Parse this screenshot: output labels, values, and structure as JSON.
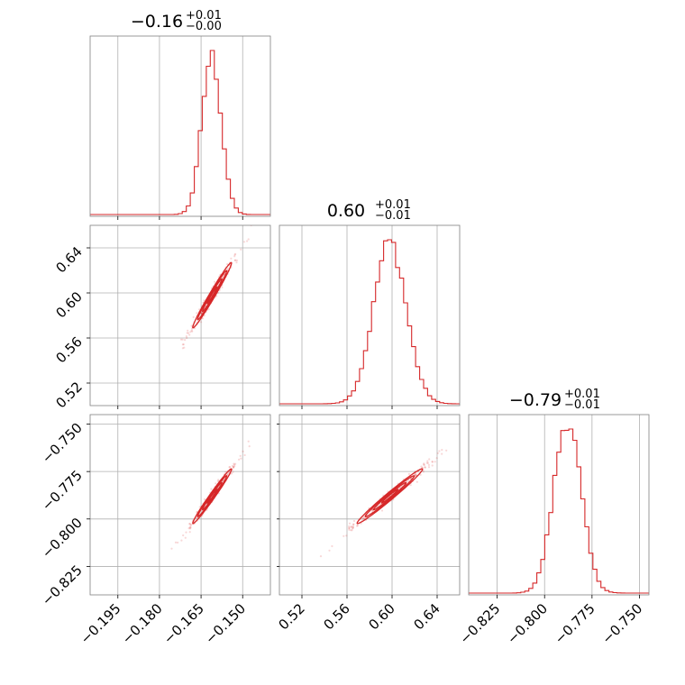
{
  "chart_data": {
    "type": "corner",
    "line_color": "#d62728",
    "grid": true,
    "params": [
      {
        "title_main": "−0.16",
        "title_plus": "+0.01",
        "title_minus": "−0.00",
        "range": [
          -0.205,
          -0.14
        ]
      },
      {
        "title_main": "0.60",
        "title_plus": "+0.01",
        "title_minus": "−0.01",
        "range": [
          0.5,
          0.66
        ]
      },
      {
        "title_main": "−0.79",
        "title_plus": "+0.01",
        "title_minus": "−0.01",
        "range": [
          -0.84,
          -0.745
        ]
      }
    ],
    "ticks": [
      [
        {
          "v": -0.195,
          "label": "−0.195"
        },
        {
          "v": -0.18,
          "label": "−0.180"
        },
        {
          "v": -0.165,
          "label": "−0.165"
        },
        {
          "v": -0.15,
          "label": "−0.150"
        }
      ],
      [
        {
          "v": 0.52,
          "label": "0.52"
        },
        {
          "v": 0.56,
          "label": "0.56"
        },
        {
          "v": 0.6,
          "label": "0.60"
        },
        {
          "v": 0.64,
          "label": "0.64"
        }
      ],
      [
        {
          "v": -0.825,
          "label": "−0.825"
        },
        {
          "v": -0.8,
          "label": "−0.800"
        },
        {
          "v": -0.775,
          "label": "−0.775"
        },
        {
          "v": -0.75,
          "label": "−0.750"
        }
      ]
    ],
    "histograms": [
      {
        "peak": -0.1612,
        "sigma": 0.0035,
        "bins": 45
      },
      {
        "peak": 0.598,
        "sigma": 0.0145,
        "bins": 45
      },
      {
        "peak": -0.788,
        "sigma": 0.0072,
        "bins": 45
      }
    ],
    "correlations": [
      {
        "row": 1,
        "col": 0,
        "x_center": -0.161,
        "y_center": 0.598,
        "x_sigma": 0.0035,
        "y_sigma": 0.0145,
        "rho": 0.985
      },
      {
        "row": 2,
        "col": 0,
        "x_center": -0.161,
        "y_center": -0.788,
        "x_sigma": 0.0035,
        "y_sigma": 0.0072,
        "rho": 0.985
      },
      {
        "row": 2,
        "col": 1,
        "x_center": 0.598,
        "y_center": -0.788,
        "x_sigma": 0.0145,
        "y_sigma": 0.0072,
        "rho": 0.985
      }
    ]
  }
}
